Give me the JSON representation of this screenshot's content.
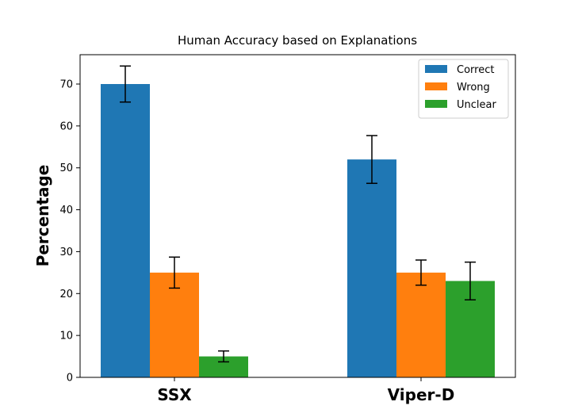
{
  "chart_data": {
    "type": "bar",
    "title": "Human Accuracy based on Explanations",
    "xlabel": "",
    "ylabel": "Percentage",
    "categories": [
      "SSX",
      "Viper-D"
    ],
    "ylim": [
      0,
      77
    ],
    "yticks": [
      0,
      10,
      20,
      30,
      40,
      50,
      60,
      70
    ],
    "grid": false,
    "legend_position": "top-right",
    "series": [
      {
        "name": "Correct",
        "color": "#1f77b4",
        "values": [
          70,
          52
        ],
        "errors": [
          4.3,
          5.7
        ]
      },
      {
        "name": "Wrong",
        "color": "#ff7f0e",
        "values": [
          25,
          25
        ],
        "errors": [
          3.7,
          3.0
        ]
      },
      {
        "name": "Unclear",
        "color": "#2ca02c",
        "values": [
          5,
          23
        ],
        "errors": [
          1.3,
          4.5
        ]
      }
    ]
  }
}
